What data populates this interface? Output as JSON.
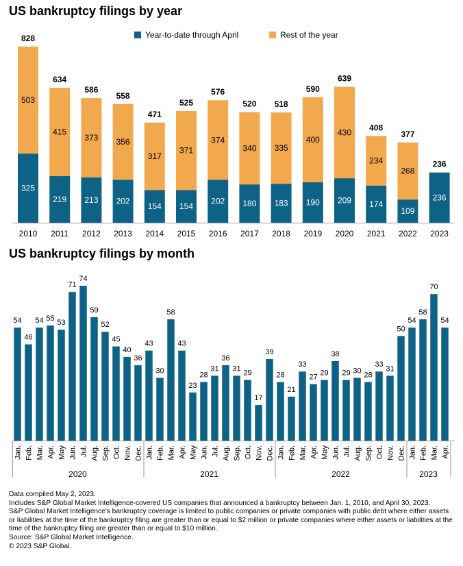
{
  "colors": {
    "ytd": "#0e6285",
    "rest": "#f2a84c",
    "axis": "#9a9a9a",
    "text": "#000000"
  },
  "chart_data": [
    {
      "type": "bar",
      "stacked": true,
      "title": "US bankruptcy filings by year",
      "categories": [
        "2010",
        "2011",
        "2012",
        "2013",
        "2014",
        "2015",
        "2016",
        "2017",
        "2018",
        "2019",
        "2020",
        "2021",
        "2022",
        "2023"
      ],
      "series": [
        {
          "name": "Year-to-date through April",
          "values": [
            325,
            219,
            213,
            202,
            154,
            154,
            202,
            180,
            183,
            190,
            209,
            174,
            109,
            236
          ]
        },
        {
          "name": "Rest of the year",
          "values": [
            503,
            415,
            373,
            356,
            317,
            371,
            374,
            340,
            335,
            400,
            430,
            234,
            268,
            null
          ]
        }
      ],
      "totals": [
        828,
        634,
        586,
        558,
        471,
        525,
        576,
        520,
        518,
        590,
        639,
        408,
        377,
        236
      ],
      "legend": "top",
      "grid": false,
      "ylim": [
        0,
        828
      ]
    },
    {
      "type": "bar",
      "title": "US bankruptcy filings by month",
      "categories": [
        "Jan.",
        "Feb.",
        "Mar.",
        "Apr.",
        "May",
        "Jun.",
        "Jul.",
        "Aug.",
        "Sep.",
        "Oct.",
        "Nov.",
        "Dec.",
        "Jan.",
        "Feb.",
        "Mar.",
        "Apr.",
        "May",
        "Jun.",
        "Jul.",
        "Aug.",
        "Sep.",
        "Oct.",
        "Nov.",
        "Dec.",
        "Jan.",
        "Feb.",
        "Mar.",
        "Apr.",
        "May",
        "Jun.",
        "Jul.",
        "Aug.",
        "Sep.",
        "Oct.",
        "Nov.",
        "Dec.",
        "Jan.",
        "Feb.",
        "Mar.",
        "Apr."
      ],
      "groups": [
        {
          "label": "2020",
          "count": 12
        },
        {
          "label": "2021",
          "count": 12
        },
        {
          "label": "2022",
          "count": 12
        },
        {
          "label": "2023",
          "count": 4
        }
      ],
      "values": [
        54,
        46,
        54,
        55,
        53,
        71,
        74,
        59,
        52,
        45,
        40,
        36,
        43,
        30,
        58,
        43,
        23,
        28,
        31,
        36,
        31,
        29,
        17,
        39,
        28,
        21,
        33,
        27,
        29,
        38,
        29,
        30,
        28,
        33,
        31,
        50,
        54,
        58,
        70,
        54
      ],
      "grid": false,
      "ylim": [
        0,
        74
      ]
    }
  ],
  "footnotes": [
    "Data compiled May 2, 2023.",
    "Includes S&P Global Market Intelligence-covered US companies that announced a bankruptcy between Jan. 1, 2010, and April 30, 2023.",
    "S&P Global Market Intelligence's bankruptcy coverage is limited to public companies or private companies with public debt where either assets or liabilities at the time of the bankruptcy filing are greater than or equal to $2 million or private companies where either assets or liabilities at the time of the bankruptcy filing are greater than or equal to $10 million.",
    "Source: S&P Global Market Intelligence.",
    "© 2023 S&P Global."
  ]
}
